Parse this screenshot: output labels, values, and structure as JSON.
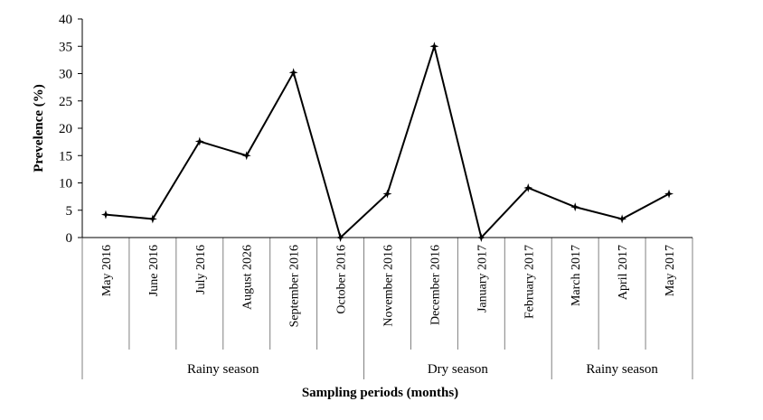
{
  "chart_data": {
    "type": "line",
    "ylabel": "Prevelence (%)",
    "xlabel": "Sampling periods (months)",
    "ylim": [
      0,
      40
    ],
    "yticks": [
      0,
      5,
      10,
      15,
      20,
      25,
      30,
      35,
      40
    ],
    "grid": false,
    "legend": "none",
    "categories": [
      "May 2016",
      "June 2016",
      "July 2016",
      "August  2026",
      "September 2016",
      "October 2016",
      "November 2016",
      "December 2016",
      "January 2017",
      "February 2017",
      "March 2017",
      "April 2017",
      "May 2017"
    ],
    "groups": [
      {
        "label": "Rainy season",
        "start": 0,
        "end": 5
      },
      {
        "label": "Dry season",
        "start": 6,
        "end": 9
      },
      {
        "label": "Rainy season",
        "start": 10,
        "end": 12
      }
    ],
    "series": [
      {
        "values": [
          4.2,
          3.4,
          17.6,
          15.0,
          30.2,
          0,
          8.0,
          35.0,
          0,
          9.1,
          5.6,
          3.4,
          8.0
        ],
        "color": "#000000"
      }
    ]
  }
}
